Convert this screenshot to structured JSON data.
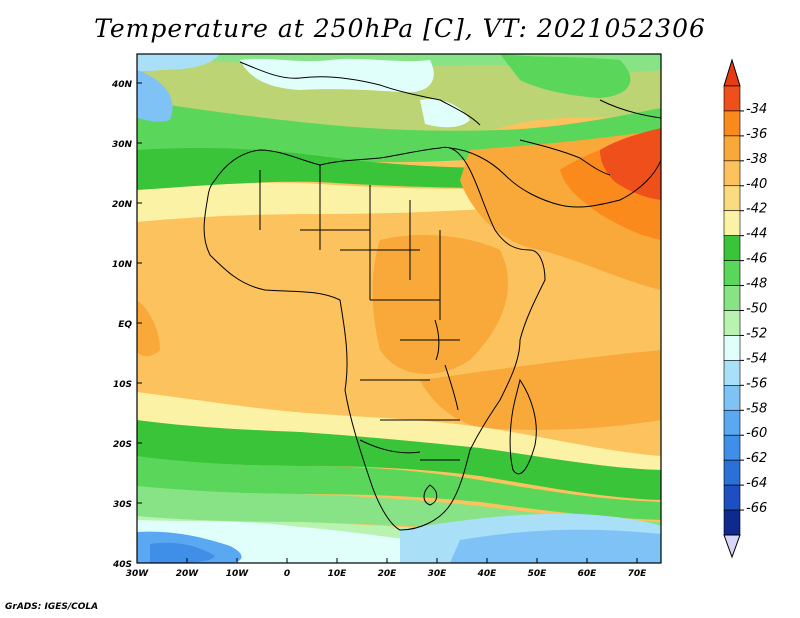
{
  "title": "Temperature at 250hPa [C], VT: 2021052306",
  "credit": "GrADS: IGES/COLA",
  "lat_ticks": [
    "40N",
    "30N",
    "20N",
    "10N",
    "EQ",
    "10S",
    "20S",
    "30S",
    "40S"
  ],
  "lon_ticks": [
    "30W",
    "20W",
    "10W",
    "0",
    "10E",
    "20E",
    "30E",
    "40E",
    "50E",
    "60E",
    "70E"
  ],
  "colorbar": {
    "labels": [
      "-34",
      "-36",
      "-38",
      "-40",
      "-42",
      "-44",
      "-46",
      "-48",
      "-50",
      "-52",
      "-54",
      "-56",
      "-58",
      "-60",
      "-62",
      "-64",
      "-66"
    ],
    "colors": [
      "#ef4f1b",
      "#fb8a1d",
      "#f9a93a",
      "#fcc25d",
      "#fbdb80",
      "#fbf2a6",
      "#39c43a",
      "#5ad65b",
      "#88e386",
      "#b8f3b0",
      "#e0fffb",
      "#a9dff7",
      "#7fc2f5",
      "#5aa8f1",
      "#3f8ee8",
      "#2b6fd9",
      "#1d4fc2",
      "#0f2a8e"
    ],
    "top_color": "#e83b12",
    "bottom_color": "#d9d6f7"
  }
}
